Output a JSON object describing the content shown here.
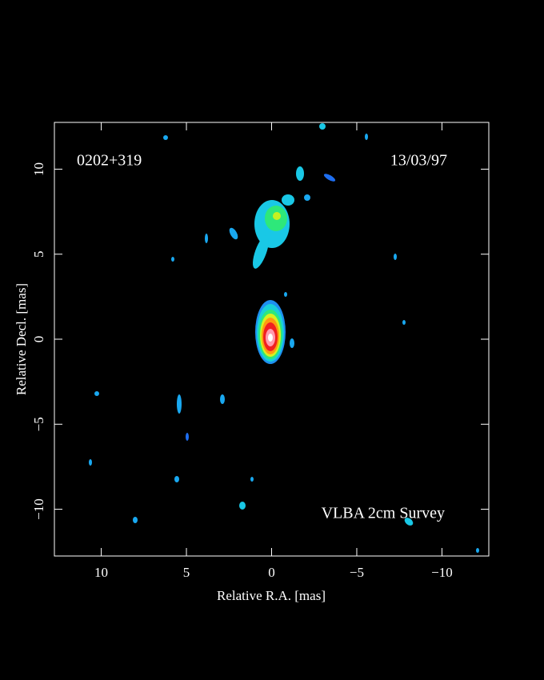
{
  "chart_data": {
    "type": "image",
    "source": "0202+319",
    "date": "13/03/97",
    "annotation": "VLBA 2cm Survey",
    "xlabel": "Relative R.A. [mas]",
    "ylabel": "Relative Decl. [mas]",
    "xlim": [
      12.75,
      -12.75
    ],
    "ylim": [
      -12.75,
      12.75
    ],
    "xticks": [
      10,
      5,
      0,
      {
        "value": -5,
        "label": "−5"
      },
      {
        "value": -10,
        "label": "−10"
      }
    ],
    "yticks": [
      {
        "value": -10,
        "label": "−10"
      },
      {
        "value": -5,
        "label": "−5"
      },
      0,
      5,
      10
    ]
  }
}
